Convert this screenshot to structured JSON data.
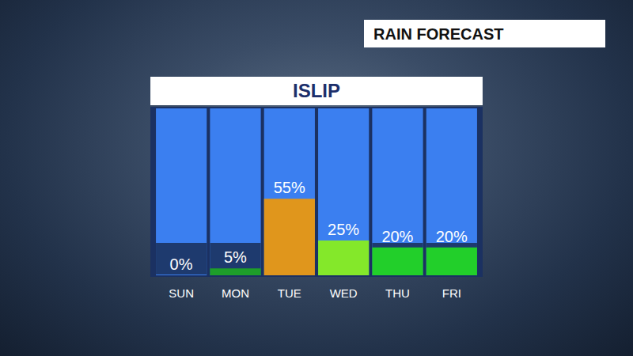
{
  "chart_data": {
    "type": "bar",
    "title": "ISLIP",
    "subtitle": "RAIN FORECAST",
    "categories": [
      "SUN",
      "MON",
      "TUE",
      "WED",
      "THU",
      "FRI"
    ],
    "values": [
      0,
      5,
      55,
      25,
      20,
      20
    ],
    "value_labels": [
      "0%",
      "5%",
      "55%",
      "25%",
      "20%",
      "20%"
    ],
    "colors": [
      "#ffffff",
      "#1e9e2a",
      "#e0961c",
      "#84e82a",
      "#22cf2a",
      "#22cf2a"
    ],
    "ylim": [
      0,
      120
    ],
    "data_labels": true,
    "tick_labels": "x"
  }
}
